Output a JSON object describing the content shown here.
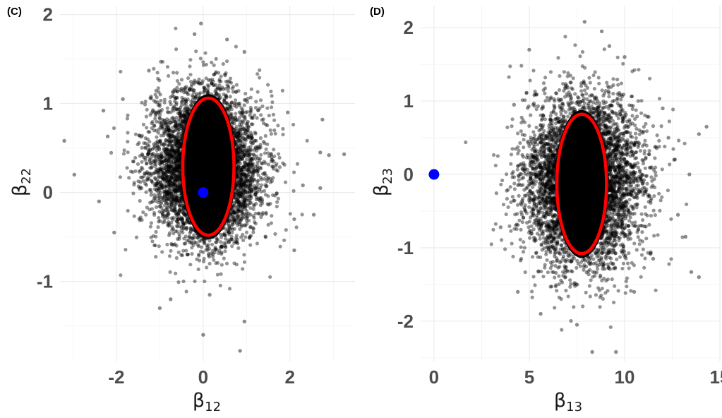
{
  "chart_data": [
    {
      "type": "scatter",
      "panel_label": "(C)",
      "xlabel": "β",
      "xlabel_sub": "12",
      "ylabel": "β",
      "ylabel_sub": "22",
      "xlim": [
        -3.3,
        3.5
      ],
      "ylim": [
        -1.9,
        2.1
      ],
      "x_ticks": [
        -2,
        0,
        2
      ],
      "x_tick_labels": [
        "-2",
        "0",
        "2"
      ],
      "y_ticks": [
        -1,
        0,
        1,
        2
      ],
      "y_tick_labels": [
        "-1",
        "0",
        "1",
        "2"
      ],
      "grid": true,
      "sample_cloud": {
        "center_x": 0.05,
        "center_y": 0.3,
        "sd_x": 0.62,
        "sd_y": 0.4,
        "n": 6000,
        "color": "#000000"
      },
      "outliers": [
        {
          "x": -3.2,
          "y": 0.58
        },
        {
          "x": -2.97,
          "y": 0.2
        },
        {
          "x": -2.3,
          "y": 0.92
        },
        {
          "x": -2.2,
          "y": 0.63
        },
        {
          "x": 2.75,
          "y": 0.82
        },
        {
          "x": 3.25,
          "y": 0.43
        },
        {
          "x": 2.9,
          "y": 0.42
        },
        {
          "x": 2.7,
          "y": 0.45
        },
        {
          "x": -0.05,
          "y": 1.9
        },
        {
          "x": 0.0,
          "y": -1.6
        },
        {
          "x": 0.85,
          "y": -1.78
        },
        {
          "x": -0.2,
          "y": 1.78
        },
        {
          "x": 0.55,
          "y": 1.72
        },
        {
          "x": -1.0,
          "y": -1.3
        },
        {
          "x": -1.25,
          "y": 1.37
        },
        {
          "x": 0.95,
          "y": 1.58
        },
        {
          "x": 2.1,
          "y": -0.3
        },
        {
          "x": 1.95,
          "y": 0.9
        },
        {
          "x": 0.95,
          "y": -1.45
        },
        {
          "x": -2.4,
          "y": -0.1
        },
        {
          "x": 2.3,
          "y": 0.08
        },
        {
          "x": -0.75,
          "y": -1.2
        },
        {
          "x": 0.15,
          "y": -1.15
        },
        {
          "x": 2.1,
          "y": -0.65
        },
        {
          "x": 2.7,
          "y": 0.05
        },
        {
          "x": 2.55,
          "y": -0.25
        },
        {
          "x": -1.85,
          "y": 1.05
        },
        {
          "x": -2.05,
          "y": -0.45
        }
      ],
      "ellipse": {
        "cx": 0.12,
        "cy": 0.29,
        "rx": 1.18,
        "ry": 0.77,
        "color": "#ff0000"
      },
      "reference_point": {
        "x": 0,
        "y": 0,
        "color": "#0000ff"
      }
    },
    {
      "type": "scatter",
      "panel_label": "(D)",
      "xlabel": "β",
      "xlabel_sub": "13",
      "ylabel": "β",
      "ylabel_sub": "23",
      "xlim": [
        -0.7,
        15
      ],
      "ylim": [
        -2.55,
        2.3
      ],
      "x_ticks": [
        0,
        5,
        10,
        15
      ],
      "x_tick_labels": [
        "0",
        "5",
        "10",
        "15"
      ],
      "y_ticks": [
        -2,
        -1,
        0,
        1,
        2
      ],
      "y_tick_labels": [
        "-2",
        "-1",
        "0",
        "1",
        "2"
      ],
      "grid": true,
      "sample_cloud": {
        "center_x": 7.8,
        "center_y": -0.1,
        "sd_x": 1.45,
        "sd_y": 0.55,
        "n": 6000,
        "color": "#000000"
      },
      "outliers": [
        {
          "x": 7.9,
          "y": 2.08
        },
        {
          "x": 8.8,
          "y": 1.95
        },
        {
          "x": 14.3,
          "y": 0.65
        },
        {
          "x": 13.9,
          "y": 0.55
        },
        {
          "x": 13.9,
          "y": -1.4
        },
        {
          "x": 13.5,
          "y": -1.33
        },
        {
          "x": 8.3,
          "y": -2.42
        },
        {
          "x": 9.55,
          "y": -2.42
        },
        {
          "x": 3.5,
          "y": -0.72
        },
        {
          "x": 4.4,
          "y": -1.6
        },
        {
          "x": 5.0,
          "y": 1.7
        },
        {
          "x": 12.3,
          "y": 0.5
        },
        {
          "x": 12.8,
          "y": -0.55
        },
        {
          "x": 13.4,
          "y": 0.0
        },
        {
          "x": 10.0,
          "y": 1.6
        },
        {
          "x": 5.6,
          "y": -1.9
        },
        {
          "x": 10.5,
          "y": -1.6
        },
        {
          "x": 7.5,
          "y": -2.05
        },
        {
          "x": 12.0,
          "y": 0.9
        },
        {
          "x": 4.2,
          "y": 0.95
        },
        {
          "x": 11.5,
          "y": -1.15
        },
        {
          "x": 13.2,
          "y": -0.85
        },
        {
          "x": 12.6,
          "y": 0.2
        },
        {
          "x": 9.2,
          "y": 1.75
        }
      ],
      "ellipse": {
        "cx": 7.75,
        "cy": -0.13,
        "rx": 2.6,
        "ry": 0.95,
        "color": "#ff0000"
      },
      "reference_point": {
        "x": 0,
        "y": 0,
        "color": "#0000ff"
      }
    }
  ]
}
